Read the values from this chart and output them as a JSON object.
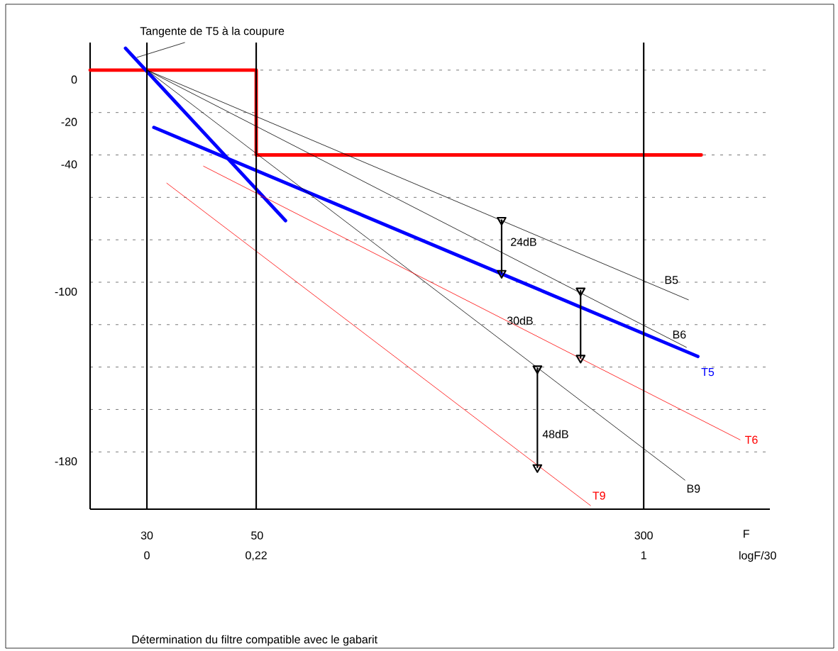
{
  "chart_data": {
    "type": "line",
    "xlabel": "logF/30",
    "x2label": "F",
    "xlim": [
      -0.1143,
      1.254
    ],
    "ylim": [
      -207,
      13
    ],
    "xticks": [
      0,
      {
        "value": 0.22,
        "label": "0,22"
      },
      1
    ],
    "x2lim": [
      23.06,
      538.5
    ],
    "x2ticks": [
      30,
      50,
      300
    ],
    "log": "x2",
    "yticks": [
      0,
      -20,
      -40,
      {
        "value": -60,
        "label": null
      },
      {
        "value": -80,
        "label": null
      },
      -100,
      {
        "value": -120,
        "label": null
      },
      {
        "value": -140,
        "label": null
      },
      {
        "value": -160,
        "label": null
      },
      -180
    ],
    "grid": "y",
    "series": [
      {
        "color": "#ff0000",
        "x": [
          -0.1143,
          0.22,
          0.22,
          1.116
        ],
        "values": [
          0,
          0,
          -40,
          -40
        ]
      },
      {
        "color": "#0000ff",
        "x": [
          -0.043,
          0.279
        ],
        "values": [
          10.3,
          -71
        ]
      },
      {
        "name": "T5",
        "color": "#0000ff",
        "x": [
          0.014,
          1.109
        ],
        "values": [
          -27,
          -135
        ]
      },
      {
        "name": "B5",
        "color": "#000000",
        "x": [
          0,
          1.09
        ],
        "values": [
          0,
          -108.3
        ]
      },
      {
        "name": "B6",
        "color": "#000000",
        "x": [
          0,
          1.086
        ],
        "values": [
          0,
          -130.7
        ]
      },
      {
        "name": "B9",
        "color": "#000000",
        "x": [
          0,
          1.083
        ],
        "values": [
          0,
          -193.3
        ]
      },
      {
        "name": "T6",
        "color": "#ff0000",
        "x": [
          0.114,
          1.194
        ],
        "values": [
          -45.3,
          -174.3
        ]
      },
      {
        "name": "T9",
        "color": "#ff0000",
        "x": [
          0.04,
          0.893
        ],
        "values": [
          -53.3,
          -205.3
        ]
      },
      {
        "color": "#000000",
        "x": [
          0.714,
          0.714
        ],
        "values": [
          -70.7,
          -95.7
        ],
        "marker": "triangle"
      },
      {
        "color": "#000000",
        "x": [
          0.873,
          0.873
        ],
        "values": [
          -104,
          -135.7
        ],
        "marker": "triangle"
      },
      {
        "color": "#000000",
        "x": [
          0.786,
          0.786
        ],
        "values": [
          -140.7,
          -187.3
        ],
        "marker": "triangle"
      },
      {
        "color": "#000000",
        "x": [
          -0.02,
          0.076
        ],
        "values": [
          6,
          13
        ]
      }
    ],
    "ref_lines": [
      {
        "axis": "x",
        "value": 0,
        "color": "#000000"
      },
      {
        "axis": "x",
        "value": 0.22,
        "color": "#000000"
      },
      {
        "axis": "x",
        "value": 1,
        "color": "#000000"
      }
    ],
    "annotations": [
      "Tangente de T5 à la coupure",
      "24dB",
      "30dB",
      "48dB",
      "Détermination du filtre  compatible avec le gabarit"
    ]
  }
}
